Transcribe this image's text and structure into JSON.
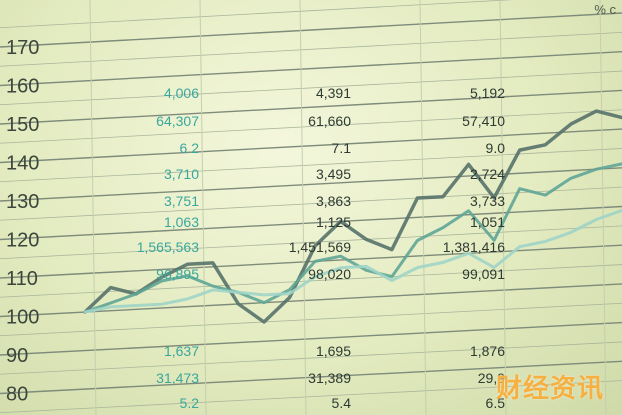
{
  "corner_text": "% c",
  "watermark": "财经资讯",
  "y_ticks": [
    "170",
    "160",
    "150",
    "140",
    "130",
    "120",
    "110",
    "100",
    "90",
    "80"
  ],
  "columns": {
    "col1": [
      "4,006",
      "64,307",
      "6.2",
      "3,710",
      "3,751",
      "1,063",
      "1,565,563",
      "96,895",
      "1,637",
      "31,473",
      "5.2"
    ],
    "col2": [
      "4,391",
      "61,660",
      "7.1",
      "3,495",
      "3,863",
      "1,125",
      "1,451,569",
      "98,020",
      "1,695",
      "31,389",
      "5.4"
    ],
    "col3": [
      "5,192",
      "57,410",
      "9.0",
      "2,724",
      "3,733",
      "1,051",
      "1,381,416",
      "99,091",
      "1,876",
      "29,9",
      "6.5"
    ]
  },
  "colors": {
    "teal_text": "#3aa79e",
    "dark_text": "#2e3a33",
    "line_dark": "#56726a",
    "line_mid": "#5fa596",
    "line_light": "#9fd4c6"
  },
  "chart_data": {
    "type": "line",
    "title": "",
    "xlabel": "",
    "ylabel": "",
    "ylim": [
      80,
      170
    ],
    "x": [
      0,
      1,
      2,
      3,
      4,
      5,
      6,
      7,
      8,
      9,
      10,
      11,
      12,
      13,
      14,
      15,
      16,
      17,
      18,
      19,
      20,
      21
    ],
    "series": [
      {
        "color_key": "line_dark",
        "values": [
          100,
          106,
          104,
          108,
          111,
          111,
          100,
          95,
          101,
          114,
          120,
          115,
          112,
          125,
          125,
          133,
          124,
          136,
          137,
          142,
          145,
          143
        ]
      },
      {
        "color_key": "line_mid",
        "values": [
          100,
          102,
          104,
          107,
          108,
          105,
          103,
          100,
          103,
          110,
          111,
          107,
          105,
          114,
          117,
          121,
          113,
          126,
          124,
          128,
          130,
          131
        ]
      },
      {
        "color_key": "line_light",
        "values": [
          100,
          101,
          101,
          101,
          102,
          104,
          103,
          102,
          102,
          106,
          108,
          108,
          104,
          107,
          108,
          110,
          106,
          111,
          112,
          114,
          117,
          119
        ]
      }
    ]
  }
}
